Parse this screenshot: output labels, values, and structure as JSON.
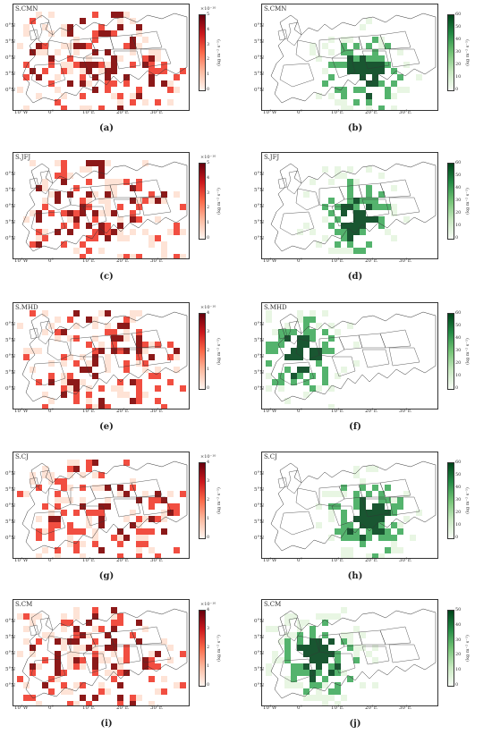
{
  "panels": [
    {
      "id": "a",
      "site": "S.CMN",
      "caption": "(a)",
      "palette": "red",
      "cbar_exp": "×10⁻¹⁰",
      "ticks": [
        "5",
        "4",
        "3",
        "2",
        "1",
        "0"
      ]
    },
    {
      "id": "b",
      "site": "S.CMN",
      "caption": "(b)",
      "palette": "green",
      "cbar_exp": "",
      "ticks": [
        "60",
        "50",
        "40",
        "30",
        "20",
        "10",
        "0"
      ]
    },
    {
      "id": "c",
      "site": "S.JFJ",
      "caption": "(c)",
      "palette": "red",
      "cbar_exp": "×10⁻¹⁰",
      "ticks": [
        "5",
        "4",
        "3",
        "2",
        "1",
        "0"
      ]
    },
    {
      "id": "d",
      "site": "S.JFJ",
      "caption": "(d)",
      "palette": "green",
      "cbar_exp": "",
      "ticks": [
        "60",
        "50",
        "40",
        "30",
        "20",
        "10",
        "0"
      ]
    },
    {
      "id": "e",
      "site": "S.MHD",
      "caption": "(e)",
      "palette": "red",
      "cbar_exp": "×10⁻¹⁰",
      "ticks": [
        "4",
        "3",
        "2",
        "1",
        "0"
      ]
    },
    {
      "id": "f",
      "site": "S.MHD",
      "caption": "(f)",
      "palette": "green",
      "cbar_exp": "",
      "ticks": [
        "60",
        "50",
        "40",
        "30",
        "20",
        "10",
        "0"
      ]
    },
    {
      "id": "g",
      "site": "S.CJ",
      "caption": "(g)",
      "palette": "red",
      "cbar_exp": "×10⁻¹⁰",
      "ticks": [
        "4",
        "3",
        "2",
        "1",
        "0"
      ]
    },
    {
      "id": "h",
      "site": "S.CJ",
      "caption": "(h)",
      "palette": "green",
      "cbar_exp": "",
      "ticks": [
        "60",
        "50",
        "40",
        "30",
        "20",
        "10",
        "0"
      ]
    },
    {
      "id": "i",
      "site": "S.CM",
      "caption": "(i)",
      "palette": "red",
      "cbar_exp": "×10⁻¹⁰",
      "ticks": [
        "4",
        "3",
        "2",
        "1",
        "0"
      ]
    },
    {
      "id": "j",
      "site": "S.CM",
      "caption": "(j)",
      "palette": "green",
      "cbar_exp": "",
      "ticks": [
        "50",
        "40",
        "30",
        "20",
        "10",
        "0"
      ]
    }
  ],
  "lat_labels": [
    "5°N",
    "0°N",
    "5°N",
    "0°N",
    "5°N",
    "0°N"
  ],
  "lon_labels": [
    "10°W",
    "0°",
    "10°E",
    "20°E",
    "30°E"
  ],
  "cbar_unit": "(kg m⁻² s⁻¹)",
  "colors": {
    "red_high": "#7f0000",
    "red_mid": "#ef3b2c",
    "red_low": "#fee0d2",
    "green_high": "#00441b",
    "green_mid": "#41ab5d",
    "green_low": "#e5f5e0",
    "border": "#333333"
  }
}
